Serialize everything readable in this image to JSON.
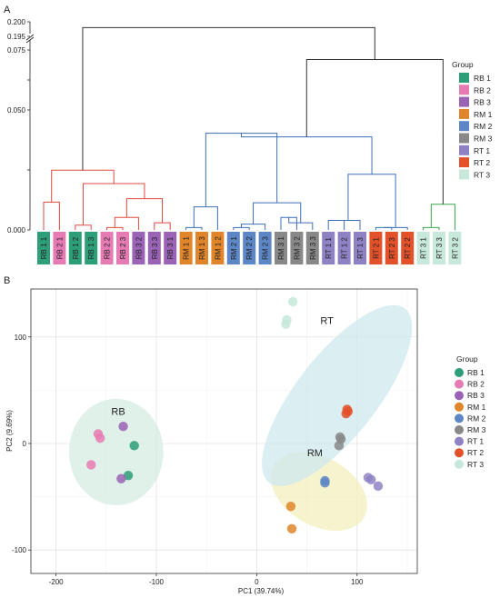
{
  "colors": {
    "RB 1": "#2e9e78",
    "RB 2": "#e67bb3",
    "RB 3": "#9a63b6",
    "RM 1": "#e0852a",
    "RM 2": "#5d86c6",
    "RM 3": "#888888",
    "RT 1": "#8f82c4",
    "RT 2": "#e2512a",
    "RT 3": "#c7e8da",
    "cluster_RB": "#e04a3f",
    "cluster_RM": "#3d6fb8",
    "cluster_RT": "#3aa64d",
    "trunk": "#333333",
    "ellipse_RB": "#d6ece3",
    "ellipse_RM": "#f3efbf",
    "ellipse_RT": "#cfe8ee"
  },
  "chart_data": [
    {
      "type": "dendrogram",
      "panel_label": "A",
      "legend_title": "Group",
      "legend_placement": "right",
      "groups": [
        "RB 1",
        "RB 2",
        "RB 3",
        "RM 1",
        "RM 2",
        "RM 3",
        "RT 1",
        "RT 2",
        "RT 3"
      ],
      "y_ticks": [
        "0.200",
        "0.195",
        "0.075",
        "0.050",
        "0.000"
      ],
      "leaves": [
        {
          "label": "RB 1 1",
          "group": "RB 1"
        },
        {
          "label": "RB 2 1",
          "group": "RB 2"
        },
        {
          "label": "RB 1 2",
          "group": "RB 1"
        },
        {
          "label": "RB 1 3",
          "group": "RB 1"
        },
        {
          "label": "RB 2 2",
          "group": "RB 2"
        },
        {
          "label": "RB 2 3",
          "group": "RB 2"
        },
        {
          "label": "RB 3 2",
          "group": "RB 3"
        },
        {
          "label": "RB 3 3",
          "group": "RB 3"
        },
        {
          "label": "RB 3 1",
          "group": "RB 3"
        },
        {
          "label": "RM 1 1",
          "group": "RM 1"
        },
        {
          "label": "RM 1 3",
          "group": "RM 1"
        },
        {
          "label": "RM 1 2",
          "group": "RM 1"
        },
        {
          "label": "RM 2 1",
          "group": "RM 2"
        },
        {
          "label": "RM 2 2",
          "group": "RM 2"
        },
        {
          "label": "RM 2 3",
          "group": "RM 2"
        },
        {
          "label": "RM 3 1",
          "group": "RM 3"
        },
        {
          "label": "RM 3 2",
          "group": "RM 3"
        },
        {
          "label": "RM 3 3",
          "group": "RM 3"
        },
        {
          "label": "RT 1 1",
          "group": "RT 1"
        },
        {
          "label": "RT 1 2",
          "group": "RT 1"
        },
        {
          "label": "RT 1 3",
          "group": "RT 1"
        },
        {
          "label": "RT 2 1",
          "group": "RT 2"
        },
        {
          "label": "RT 2 3",
          "group": "RT 2"
        },
        {
          "label": "RT 2 2",
          "group": "RT 2"
        },
        {
          "label": "RT 3 1",
          "group": "RT 3"
        },
        {
          "label": "RT 3 3",
          "group": "RT 3"
        },
        {
          "label": "RT 3 2",
          "group": "RT 3"
        }
      ],
      "merges": [
        {
          "left": "L0",
          "right": "L1",
          "height": 0.0116,
          "cluster": "RB",
          "id": "a1"
        },
        {
          "left": "L2",
          "right": "L3",
          "height": 0.002,
          "cluster": "RB",
          "id": "a2"
        },
        {
          "left": "L4",
          "right": "L5",
          "height": 0.001,
          "cluster": "RB",
          "id": "a3"
        },
        {
          "left": "a3",
          "right": "L6",
          "height": 0.0052,
          "cluster": "RB",
          "id": "a4"
        },
        {
          "left": "L7",
          "right": "L8",
          "height": 0.003,
          "cluster": "RB",
          "id": "a5"
        },
        {
          "left": "a4",
          "right": "a5",
          "height": 0.013,
          "cluster": "RB",
          "id": "a6"
        },
        {
          "left": "a2",
          "right": "a6",
          "height": 0.0193,
          "cluster": "RB",
          "id": "a7"
        },
        {
          "left": "a1",
          "right": "a7",
          "height": 0.0249,
          "cluster": "RB",
          "id": "a8"
        },
        {
          "left": "a8",
          "right": "a8b",
          "height": 0.0277,
          "cluster": "RB",
          "id": "a9",
          "single": true
        },
        {
          "left": "L9",
          "right": "L10",
          "height": 0.001,
          "cluster": "RM",
          "id": "b1"
        },
        {
          "left": "b1",
          "right": "L11",
          "height": 0.0096,
          "cluster": "RM",
          "id": "b2"
        },
        {
          "left": "b2",
          "right": "b2",
          "height": 0.0192,
          "cluster": "RM",
          "id": "b3",
          "single": true
        },
        {
          "left": "L12",
          "right": "L13",
          "height": 0.001,
          "cluster": "RM",
          "id": "b4"
        },
        {
          "left": "b4",
          "right": "L14",
          "height": 0.0024,
          "cluster": "RM",
          "id": "b5"
        },
        {
          "left": "L15",
          "right": "L16",
          "height": 0.0052,
          "cluster": "RM",
          "id": "b6"
        },
        {
          "left": "b6",
          "right": "L17",
          "height": 0.003,
          "cluster": "RM",
          "id": "b7"
        },
        {
          "left": "b5",
          "right": "b7",
          "height": 0.0113,
          "cluster": "RM",
          "id": "b8"
        },
        {
          "left": "b3",
          "right": "b8",
          "height": 0.0403,
          "cluster": "RM",
          "id": "b9"
        },
        {
          "left": "L18",
          "right": "L19",
          "height": 0.004,
          "cluster": "RM",
          "id": "c1"
        },
        {
          "left": "c1",
          "right": "L20",
          "height": 0.004,
          "cluster": "RM",
          "id": "c2"
        },
        {
          "left": "L21",
          "right": "L22",
          "height": 0.001,
          "cluster": "RM",
          "id": "c3"
        },
        {
          "left": "c3",
          "right": "L23",
          "height": 0.001,
          "cluster": "RM",
          "id": "c4"
        },
        {
          "left": "c2",
          "right": "c4",
          "height": 0.0232,
          "cluster": "RM",
          "id": "c5"
        },
        {
          "left": "b9",
          "right": "c5",
          "height": 0.0388,
          "cluster": "RM",
          "id": "c6"
        },
        {
          "left": "L24",
          "right": "L25",
          "height": 0.001,
          "cluster": "RT",
          "id": "d1"
        },
        {
          "left": "d1",
          "right": "L26",
          "height": 0.0107,
          "cluster": "RT",
          "id": "d2"
        }
      ]
    },
    {
      "type": "scatter",
      "panel_label": "B",
      "xlabel": "PC1 (39.74%)",
      "ylabel": "PC2 (9.69%)",
      "xlim": [
        -225,
        160
      ],
      "ylim": [
        -122,
        145
      ],
      "x_ticks": [
        -200,
        -100,
        0,
        100
      ],
      "y_ticks": [
        -100,
        0,
        100
      ],
      "grid": true,
      "legend_title": "Group",
      "legend_placement": "right",
      "groups": [
        "RB 1",
        "RB 2",
        "RB 3",
        "RM 1",
        "RM 2",
        "RM 3",
        "RT 1",
        "RT 2",
        "RT 3"
      ],
      "cluster_labels": [
        {
          "text": "RB",
          "x": -138,
          "y": 27
        },
        {
          "text": "RM",
          "x": 58,
          "y": -12
        },
        {
          "text": "RT",
          "x": 70,
          "y": 112
        }
      ],
      "ellipses": [
        {
          "group": "RB",
          "cx": -140,
          "cy": -8,
          "rx": 47,
          "ry": 50,
          "angle": 0
        },
        {
          "group": "RM",
          "cx": 62,
          "cy": -45,
          "rx": 52,
          "ry": 32,
          "angle": 30
        },
        {
          "group": "RT",
          "cx": 80,
          "cy": 45,
          "rx": 110,
          "ry": 38,
          "angle": -52
        }
      ],
      "series": [
        {
          "name": "RB 1",
          "points": [
            [
              -122,
              -2
            ],
            [
              -128,
              -30
            ]
          ]
        },
        {
          "name": "RB 2",
          "points": [
            [
              -158,
              9
            ],
            [
              -156,
              5
            ],
            [
              -165,
              -20
            ]
          ]
        },
        {
          "name": "RB 3",
          "points": [
            [
              -133,
              16
            ],
            [
              -135,
              -33
            ]
          ]
        },
        {
          "name": "RM 1",
          "points": [
            [
              34,
              -59
            ],
            [
              35,
              -80
            ]
          ]
        },
        {
          "name": "RM 2",
          "points": [
            [
              68,
              -35
            ],
            [
              68,
              -37
            ]
          ]
        },
        {
          "name": "RM 3",
          "points": [
            [
              83,
              6
            ],
            [
              84,
              4
            ],
            [
              82,
              -2
            ]
          ]
        },
        {
          "name": "RT 1",
          "points": [
            [
              111,
              -32
            ],
            [
              114,
              -34
            ],
            [
              121,
              -40
            ]
          ]
        },
        {
          "name": "RT 2",
          "points": [
            [
              90,
              32
            ],
            [
              89,
              28
            ],
            [
              91,
              30
            ]
          ]
        },
        {
          "name": "RT 3",
          "points": [
            [
              36,
              133
            ],
            [
              30,
              116
            ],
            [
              29,
              112
            ]
          ]
        }
      ]
    }
  ]
}
